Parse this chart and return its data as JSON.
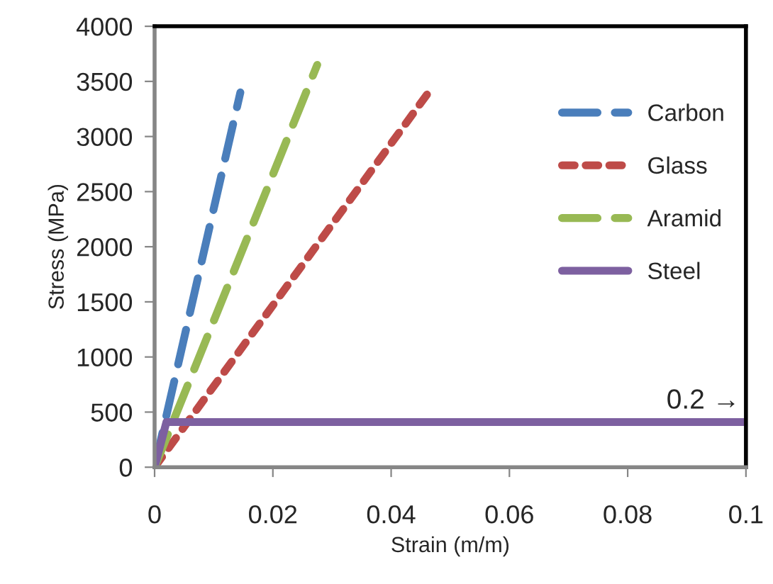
{
  "chart_data": {
    "type": "line",
    "xlabel": "Strain (m/m)",
    "ylabel": "Stress (MPa)",
    "xlim": [
      0,
      0.1
    ],
    "ylim": [
      0,
      4000
    ],
    "xticks": [
      0,
      0.02,
      0.04,
      0.06,
      0.08,
      0.1
    ],
    "yticks": [
      0,
      500,
      1000,
      1500,
      2000,
      2500,
      3000,
      3500,
      4000
    ],
    "grid": false,
    "legend": "right",
    "marker": "none",
    "annotations": [
      "0.2 →"
    ],
    "series": [
      {
        "name": "Carbon",
        "color": "#4a7ebb",
        "line_style": "dashed",
        "x": [
          0,
          0.0145
        ],
        "values": [
          0,
          3400
        ]
      },
      {
        "name": "Glass",
        "color": "#be4b48",
        "line_style": "dotted",
        "x": [
          0,
          0.047
        ],
        "values": [
          0,
          3450
        ]
      },
      {
        "name": "Aramid",
        "color": "#98b954",
        "line_style": "dashed",
        "x": [
          0,
          0.0275
        ],
        "values": [
          0,
          3650
        ]
      },
      {
        "name": "Steel",
        "color": "#7d60a0",
        "line_style": "solid",
        "x": [
          0,
          0.002,
          0.1
        ],
        "values": [
          0,
          410,
          410
        ]
      }
    ]
  }
}
